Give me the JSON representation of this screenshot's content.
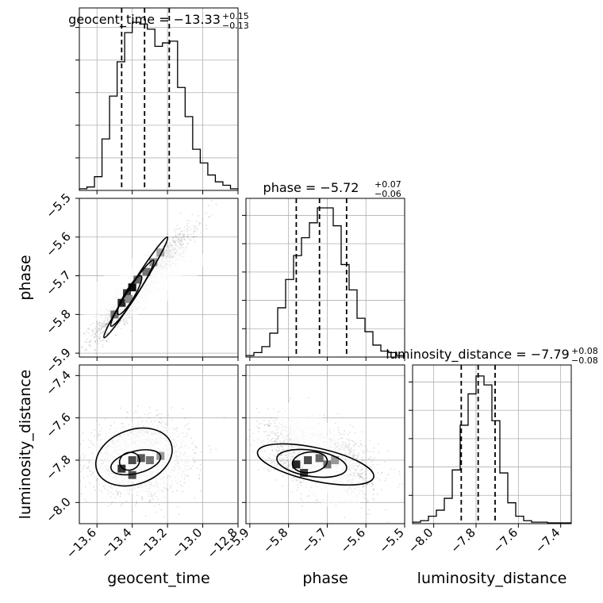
{
  "chart_data": {
    "type": "corner",
    "grid": true,
    "parameters": [
      {
        "name": "geocent_time",
        "title_prefix": "geocent_time = −13.33",
        "title_plus": "+0.15",
        "title_minus": "−0.13",
        "range": [
          -13.7,
          -12.8
        ],
        "ticks": [
          -13.6,
          -13.4,
          -13.2,
          -13.0,
          -12.8
        ],
        "tick_labels": [
          "−13.6",
          "−13.4",
          "−13.2",
          "−13.0",
          "−12.8"
        ],
        "quantiles": [
          -13.46,
          -13.33,
          -13.19
        ],
        "histogram": [
          0.01,
          0.02,
          0.08,
          0.3,
          0.55,
          0.75,
          0.92,
          0.98,
          0.97,
          0.94,
          0.84,
          0.86,
          0.87,
          0.6,
          0.43,
          0.24,
          0.16,
          0.09,
          0.05,
          0.03,
          0.01
        ]
      },
      {
        "name": "phase",
        "title_prefix": "phase = −5.72",
        "title_plus": "+0.07",
        "title_minus": "−0.06",
        "range": [
          -5.91,
          -5.5
        ],
        "ticks": [
          -5.9,
          -5.8,
          -5.7,
          -5.6,
          -5.5
        ],
        "tick_labels": [
          "−5.9",
          "−5.8",
          "−5.7",
          "−5.6",
          "−5.5"
        ],
        "quantiles": [
          -5.78,
          -5.72,
          -5.65
        ],
        "histogram": [
          0.01,
          0.03,
          0.07,
          0.16,
          0.33,
          0.52,
          0.68,
          0.8,
          0.9,
          1.0,
          1.0,
          0.88,
          0.62,
          0.45,
          0.26,
          0.17,
          0.08,
          0.04,
          0.03,
          0.01
        ]
      },
      {
        "name": "luminosity_distance",
        "title_prefix": "luminosity_distance = −7.79",
        "title_plus": "+0.08",
        "title_minus": "−0.08",
        "range": [
          -8.1,
          -7.35
        ],
        "ticks": [
          -8.0,
          -7.8,
          -7.6,
          -7.4
        ],
        "tick_labels": [
          "−8.0",
          "−7.8",
          "−7.6",
          "−7.4"
        ],
        "quantiles": [
          -7.87,
          -7.79,
          -7.71
        ],
        "histogram": [
          0.01,
          0.02,
          0.05,
          0.09,
          0.17,
          0.36,
          0.66,
          0.87,
          0.99,
          0.93,
          0.69,
          0.34,
          0.14,
          0.05,
          0.02,
          0.01,
          0.01,
          0.005,
          0.005,
          0.005
        ]
      }
    ],
    "pairs": [
      {
        "x": "geocent_time",
        "y": "phase",
        "mean": [
          -13.34,
          -5.72
        ],
        "sd": [
          0.13,
          0.065
        ],
        "corr": 0.93,
        "heat_cells": [
          [
            -13.5,
            -5.8,
            0.55
          ],
          [
            -13.46,
            -5.77,
            0.85
          ],
          [
            -13.43,
            -5.745,
            0.75
          ],
          [
            -13.4,
            -5.73,
            0.95
          ],
          [
            -13.37,
            -5.71,
            0.6
          ],
          [
            -13.32,
            -5.69,
            0.55
          ],
          [
            -13.28,
            -5.665,
            0.45
          ],
          [
            -13.24,
            -5.64,
            0.35
          ],
          [
            -13.42,
            -5.76,
            0.45
          ]
        ],
        "contour": [
          [
            [
              -13.48,
              -5.8
            ],
            [
              -13.35,
              -5.7
            ],
            [
              -13.42,
              -5.74
            ]
          ],
          [
            [
              -13.52,
              -5.83
            ],
            [
              -13.28,
              -5.66
            ],
            [
              -13.4,
              -5.76
            ]
          ],
          [
            [
              -13.56,
              -5.86
            ],
            [
              -13.2,
              -5.6
            ],
            [
              -13.3,
              -5.68
            ]
          ]
        ]
      },
      {
        "x": "geocent_time",
        "y": "luminosity_distance",
        "mean": [
          -13.35,
          -7.79
        ],
        "sd": [
          0.13,
          0.08
        ],
        "corr": 0.05,
        "heat_cells": [
          [
            -13.46,
            -7.84,
            0.8
          ],
          [
            -13.4,
            -7.8,
            0.7
          ],
          [
            -13.35,
            -7.79,
            0.65
          ],
          [
            -13.3,
            -7.8,
            0.55
          ],
          [
            -13.4,
            -7.87,
            0.7
          ],
          [
            -13.24,
            -7.78,
            0.4
          ]
        ],
        "contour": [
          [
            [
              -13.47,
              -7.82
            ],
            [
              -13.36,
              -7.79
            ],
            [
              -13.42,
              -7.85
            ]
          ],
          [
            [
              -13.52,
              -7.84
            ],
            [
              -13.24,
              -7.78
            ],
            [
              -13.36,
              -7.86
            ]
          ],
          [
            [
              -13.6,
              -7.85
            ],
            [
              -13.18,
              -7.72
            ],
            [
              -13.32,
              -7.9
            ]
          ]
        ]
      },
      {
        "x": "phase",
        "y": "luminosity_distance",
        "mean": [
          -5.72,
          -7.79
        ],
        "sd": [
          0.065,
          0.08
        ],
        "corr": -0.45,
        "heat_cells": [
          [
            -5.78,
            -7.82,
            0.85
          ],
          [
            -5.75,
            -7.8,
            0.7
          ],
          [
            -5.72,
            -7.79,
            0.6
          ],
          [
            -5.7,
            -7.82,
            0.55
          ],
          [
            -5.76,
            -7.86,
            0.75
          ],
          [
            -5.68,
            -7.8,
            0.4
          ]
        ],
        "contour": [
          [
            [
              -5.79,
              -7.82
            ],
            [
              -5.7,
              -7.8
            ],
            [
              -5.75,
              -7.86
            ]
          ],
          [
            [
              -5.83,
              -7.79
            ],
            [
              -5.65,
              -7.84
            ],
            [
              -5.73,
              -7.88
            ]
          ],
          [
            [
              -5.88,
              -7.76
            ],
            [
              -5.58,
              -7.88
            ],
            [
              -5.68,
              -7.92
            ]
          ]
        ]
      }
    ],
    "colors": {
      "line": "#000000",
      "grid": "#b0b0b0",
      "scatter": "#555555"
    }
  }
}
